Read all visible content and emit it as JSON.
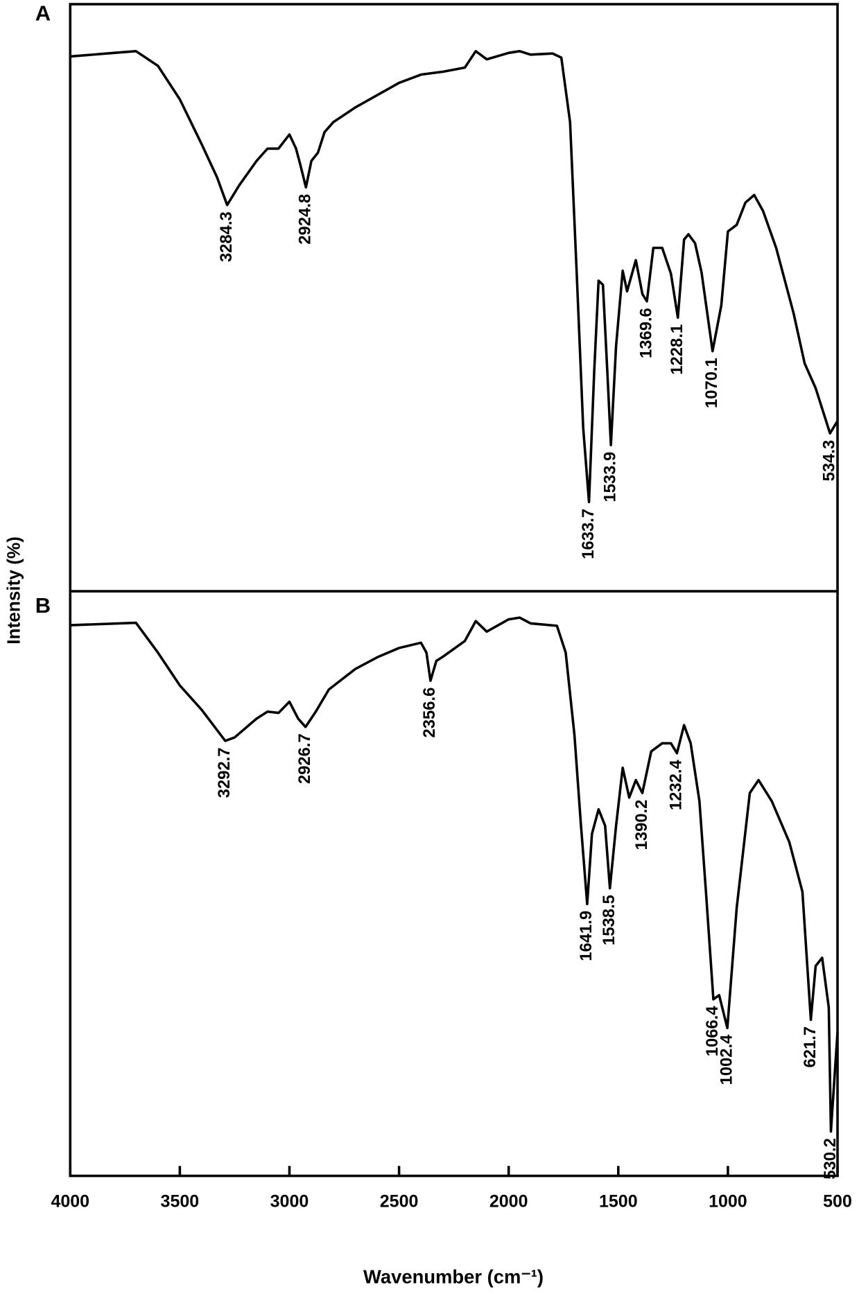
{
  "chart_data": [
    {
      "type": "line",
      "label": "A",
      "ylabel": "Intensity (%)",
      "color": "#000000",
      "xlim": [
        4000,
        500
      ],
      "ylim": [
        0,
        100
      ],
      "x": [
        4000,
        3800,
        3700,
        3600,
        3500,
        3400,
        3330,
        3284.3,
        3230,
        3150,
        3100,
        3050,
        3000,
        2970,
        2950,
        2924.8,
        2900,
        2870,
        2840,
        2800,
        2700,
        2600,
        2500,
        2400,
        2300,
        2200,
        2150,
        2100,
        2000,
        1950,
        1900,
        1800,
        1760,
        1720,
        1690,
        1660,
        1633.7,
        1610,
        1590,
        1570,
        1550,
        1533.9,
        1510,
        1480,
        1460,
        1420,
        1390,
        1369.6,
        1340,
        1300,
        1260,
        1228.1,
        1200,
        1180,
        1150,
        1120,
        1070.1,
        1030,
        1000,
        960,
        920,
        880,
        840,
        780,
        700,
        650,
        600,
        534.3,
        500
      ],
      "values": [
        91.1,
        91.7,
        92.0,
        89.5,
        83.8,
        76.1,
        70.5,
        65.8,
        69.1,
        73.3,
        75.4,
        75.4,
        77.8,
        75.4,
        72.6,
        68.8,
        73.3,
        74.7,
        78.2,
        79.9,
        82.4,
        84.5,
        86.6,
        88.0,
        88.5,
        89.2,
        92.0,
        90.6,
        91.7,
        92.0,
        91.4,
        91.6,
        90.9,
        79.9,
        54.6,
        27.8,
        15.2,
        37.4,
        52.9,
        52.2,
        37.4,
        24.9,
        41.8,
        54.6,
        51.1,
        56.4,
        50.6,
        49.4,
        58.5,
        58.5,
        54.1,
        46.6,
        59.9,
        60.8,
        59.3,
        54.3,
        40.9,
        48.7,
        61.3,
        62.4,
        66.2,
        67.5,
        64.8,
        58.5,
        47.3,
        38.8,
        34.6,
        26.9,
        29.0
      ],
      "peaks": [
        3284.3,
        2924.8,
        1633.7,
        1533.9,
        1369.6,
        1228.1,
        1070.1,
        534.3
      ]
    },
    {
      "type": "line",
      "label": "B",
      "xlabel": "Wavenumber (cm⁻¹)",
      "color": "#000000",
      "xlim": [
        4000,
        500
      ],
      "ylim": [
        0,
        100
      ],
      "xticks": [
        4000,
        3500,
        3000,
        2500,
        2000,
        1500,
        1000,
        500
      ],
      "x": [
        4000,
        3700,
        3600,
        3500,
        3400,
        3292.7,
        3250,
        3150,
        3100,
        3050,
        3000,
        2960,
        2926.7,
        2880,
        2820,
        2700,
        2600,
        2500,
        2400,
        2375,
        2356.6,
        2330,
        2300,
        2200,
        2150,
        2100,
        2000,
        1950,
        1900,
        1780,
        1740,
        1700,
        1670,
        1641.9,
        1620,
        1590,
        1560,
        1538.5,
        1510,
        1480,
        1450,
        1420,
        1390.2,
        1350,
        1300,
        1260,
        1232.4,
        1200,
        1170,
        1130,
        1100,
        1066.4,
        1040,
        1002.4,
        960,
        900,
        860,
        800,
        720,
        660,
        621.7,
        600,
        570,
        540,
        530.2,
        500
      ],
      "values": [
        94.2,
        94.6,
        89.5,
        83.9,
        79.7,
        74.4,
        75.0,
        78.2,
        79.4,
        79.2,
        81.1,
        78.2,
        76.8,
        79.4,
        83.2,
        86.7,
        88.7,
        90.3,
        91.2,
        89.5,
        84.7,
        88.1,
        88.8,
        91.5,
        94.9,
        93.1,
        95.2,
        95.5,
        94.5,
        94.1,
        89.5,
        75.4,
        59.9,
        46.5,
        58.5,
        62.7,
        59.9,
        49.2,
        59.9,
        69.8,
        64.7,
        67.7,
        65.5,
        72.6,
        74.0,
        74.0,
        72.3,
        77.1,
        74.0,
        64.1,
        48.6,
        30.2,
        30.9,
        25.3,
        45.8,
        65.5,
        67.7,
        64.1,
        57.1,
        48.6,
        26.7,
        35.9,
        37.3,
        28.8,
        7.6,
        24.6
      ],
      "peaks": [
        3292.7,
        2926.7,
        2356.6,
        1641.9,
        1538.5,
        1390.2,
        1232.4,
        1066.4,
        1002.4,
        621.7,
        530.2
      ]
    }
  ]
}
